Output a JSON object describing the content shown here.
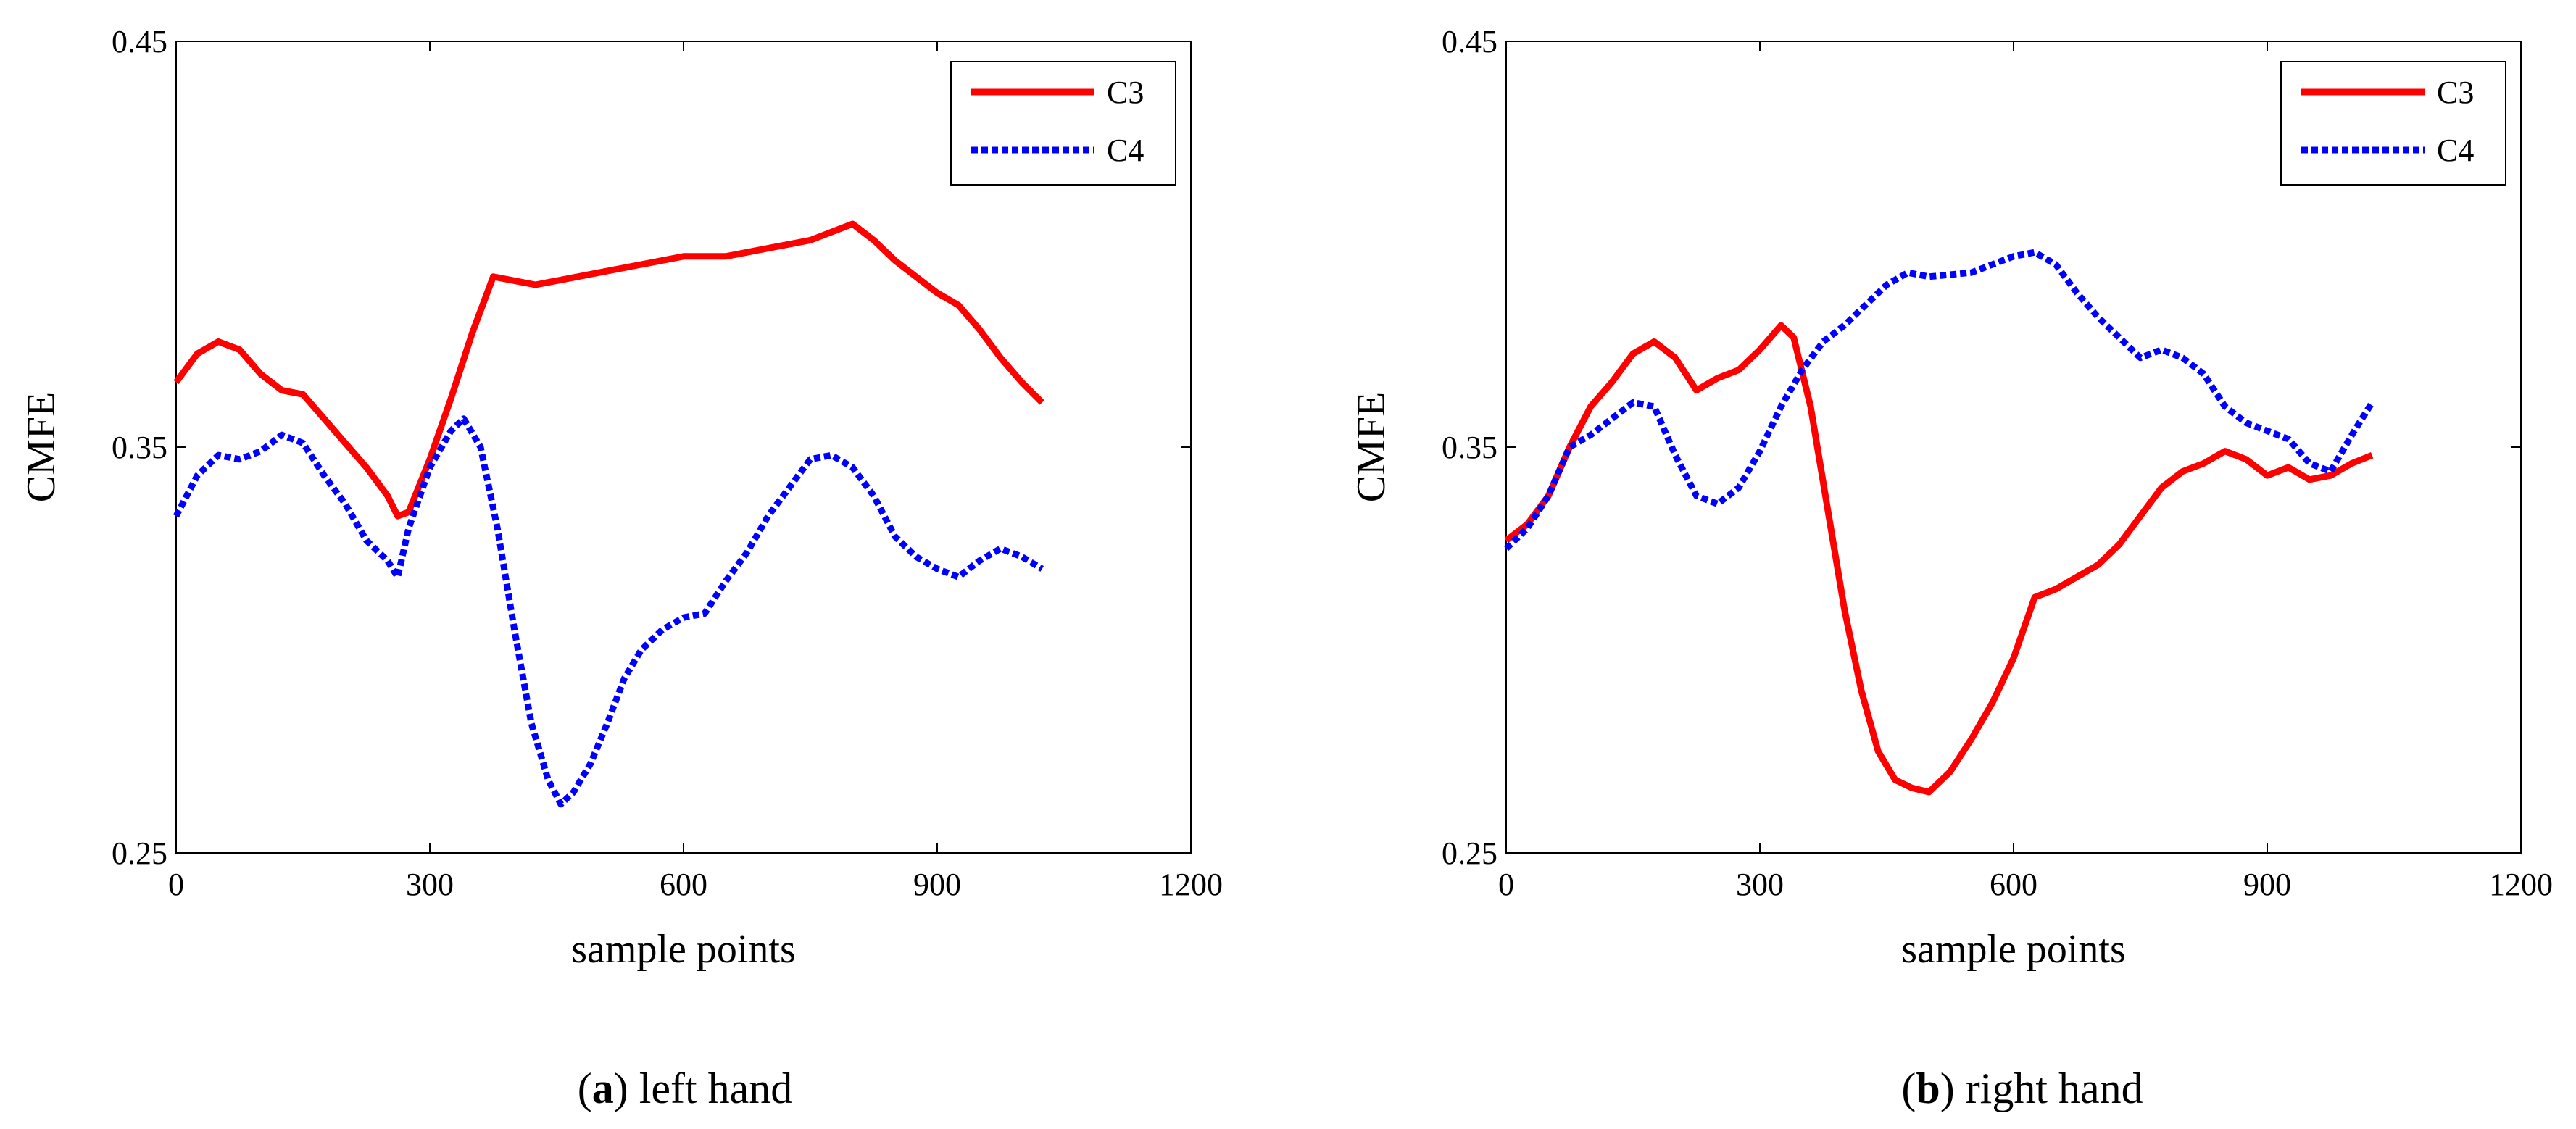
{
  "chart_data": [
    {
      "type": "line",
      "panel": "a",
      "caption_letter": "a",
      "caption_text": " left hand",
      "xlabel": "sample points",
      "ylabel": "CMFE",
      "xlim": [
        0,
        1200
      ],
      "ylim": [
        0.25,
        0.45
      ],
      "xticks": [
        "0",
        "300",
        "600",
        "900",
        "1200"
      ],
      "yticks": [
        "0.25",
        "0.35",
        "0.45"
      ],
      "legend_position": "top-right",
      "series": [
        {
          "name": "C3",
          "color": "#ff0000",
          "style": "solid",
          "x": [
            0,
            25,
            50,
            75,
            100,
            125,
            150,
            175,
            200,
            225,
            250,
            262,
            275,
            300,
            325,
            350,
            375,
            400,
            425,
            450,
            475,
            500,
            550,
            600,
            650,
            700,
            750,
            800,
            825,
            850,
            875,
            900,
            925,
            950,
            975,
            1000,
            1024
          ],
          "values": [
            0.366,
            0.373,
            0.376,
            0.374,
            0.368,
            0.364,
            0.363,
            0.357,
            0.351,
            0.345,
            0.338,
            0.333,
            0.334,
            0.347,
            0.362,
            0.378,
            0.392,
            0.391,
            0.39,
            0.391,
            0.392,
            0.393,
            0.395,
            0.397,
            0.397,
            0.399,
            0.401,
            0.405,
            0.401,
            0.396,
            0.392,
            0.388,
            0.385,
            0.379,
            0.372,
            0.366,
            0.361
          ]
        },
        {
          "name": "C4",
          "color": "#0000ff",
          "style": "dotted",
          "x": [
            0,
            25,
            50,
            75,
            100,
            125,
            150,
            175,
            200,
            225,
            250,
            262,
            275,
            300,
            325,
            340,
            360,
            380,
            400,
            420,
            440,
            455,
            470,
            490,
            510,
            530,
            550,
            575,
            600,
            625,
            650,
            675,
            700,
            725,
            750,
            775,
            800,
            825,
            850,
            875,
            900,
            925,
            950,
            975,
            1000,
            1024
          ],
          "values": [
            0.333,
            0.343,
            0.348,
            0.347,
            0.349,
            0.353,
            0.351,
            0.343,
            0.336,
            0.327,
            0.322,
            0.318,
            0.33,
            0.345,
            0.354,
            0.357,
            0.35,
            0.33,
            0.305,
            0.282,
            0.268,
            0.262,
            0.265,
            0.272,
            0.282,
            0.293,
            0.3,
            0.305,
            0.308,
            0.309,
            0.317,
            0.324,
            0.333,
            0.34,
            0.347,
            0.348,
            0.345,
            0.338,
            0.328,
            0.323,
            0.32,
            0.318,
            0.322,
            0.325,
            0.323,
            0.32
          ]
        }
      ]
    },
    {
      "type": "line",
      "panel": "b",
      "caption_letter": "b",
      "caption_text": " right hand",
      "xlabel": "sample points",
      "ylabel": "CMFE",
      "xlim": [
        0,
        1200
      ],
      "ylim": [
        0.25,
        0.45
      ],
      "xticks": [
        "0",
        "300",
        "600",
        "900",
        "1200"
      ],
      "yticks": [
        "0.25",
        "0.35",
        "0.45"
      ],
      "legend_position": "top-right",
      "series": [
        {
          "name": "C3",
          "color": "#ff0000",
          "style": "solid",
          "x": [
            0,
            25,
            50,
            75,
            100,
            125,
            150,
            175,
            200,
            225,
            250,
            275,
            300,
            325,
            340,
            360,
            380,
            400,
            420,
            440,
            460,
            480,
            500,
            525,
            550,
            575,
            600,
            625,
            650,
            675,
            700,
            725,
            750,
            775,
            800,
            825,
            850,
            875,
            900,
            925,
            950,
            975,
            1000,
            1024
          ],
          "values": [
            0.327,
            0.331,
            0.338,
            0.35,
            0.36,
            0.366,
            0.373,
            0.376,
            0.372,
            0.364,
            0.367,
            0.369,
            0.374,
            0.38,
            0.377,
            0.36,
            0.335,
            0.31,
            0.29,
            0.275,
            0.268,
            0.266,
            0.265,
            0.27,
            0.278,
            0.287,
            0.298,
            0.313,
            0.315,
            0.318,
            0.321,
            0.326,
            0.333,
            0.34,
            0.344,
            0.346,
            0.349,
            0.347,
            0.343,
            0.345,
            0.342,
            0.343,
            0.346,
            0.348
          ]
        },
        {
          "name": "C4",
          "color": "#0000ff",
          "style": "dotted",
          "x": [
            0,
            25,
            50,
            75,
            100,
            125,
            150,
            175,
            200,
            225,
            250,
            275,
            300,
            325,
            350,
            375,
            400,
            425,
            450,
            475,
            500,
            550,
            600,
            625,
            650,
            675,
            700,
            725,
            750,
            775,
            800,
            825,
            850,
            875,
            900,
            925,
            950,
            975,
            1000,
            1024
          ],
          "values": [
            0.325,
            0.33,
            0.338,
            0.35,
            0.353,
            0.357,
            0.361,
            0.36,
            0.348,
            0.338,
            0.336,
            0.34,
            0.349,
            0.36,
            0.369,
            0.376,
            0.38,
            0.385,
            0.39,
            0.393,
            0.392,
            0.393,
            0.397,
            0.398,
            0.395,
            0.388,
            0.382,
            0.377,
            0.372,
            0.374,
            0.372,
            0.368,
            0.36,
            0.356,
            0.354,
            0.352,
            0.346,
            0.344,
            0.353,
            0.361
          ]
        }
      ]
    }
  ]
}
